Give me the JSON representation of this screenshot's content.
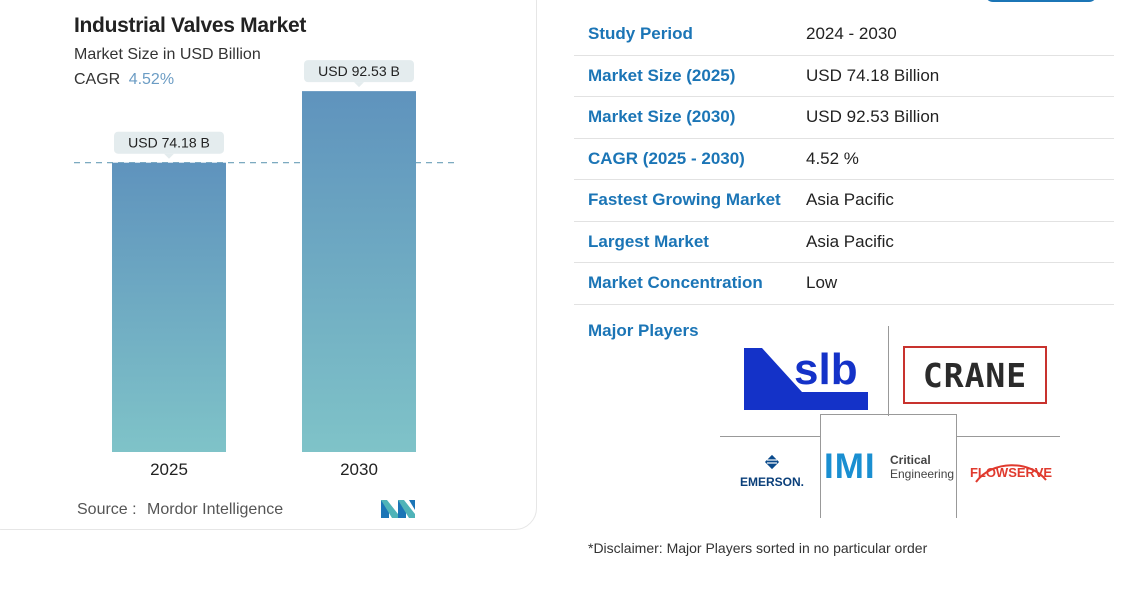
{
  "chart_data": {
    "type": "bar",
    "title": "Industrial Valves Market",
    "subtitle": "Market Size in USD Billion",
    "cagr_label": "CAGR",
    "cagr_value": "4.52%",
    "categories": [
      "2025",
      "2030"
    ],
    "values": [
      74.18,
      92.53
    ],
    "data_labels": [
      "USD 74.18 B",
      "USD 92.53 B"
    ],
    "xlabel": "",
    "ylabel": "",
    "ylim": [
      0,
      100
    ],
    "grid": false,
    "reference_line": 74.18,
    "bar_gradient": {
      "top": "#5f93bd",
      "bottom": "#7fc3c8"
    }
  },
  "source": {
    "label": "Source :",
    "name": "Mordor Intelligence"
  },
  "brand_color": "#1b75b6",
  "table": [
    {
      "key": "Study Period",
      "value": "2024 - 2030"
    },
    {
      "key": "Market Size (2025)",
      "value": "USD 74.18 Billion"
    },
    {
      "key": "Market Size (2030)",
      "value": "USD 92.53 Billion"
    },
    {
      "key": "CAGR (2025 - 2030)",
      "value": "4.52 %"
    },
    {
      "key": "Fastest Growing Market",
      "value": "Asia Pacific"
    },
    {
      "key": "Largest Market",
      "value": "Asia Pacific"
    },
    {
      "key": "Market Concentration",
      "value": "Low"
    }
  ],
  "players": {
    "label": "Major Players",
    "logos": {
      "slb": "slb",
      "crane": "CRANE",
      "emerson": "EMERSON.",
      "imi_main": "IMI",
      "imi_line1": "Critical",
      "imi_line2": "Engineering",
      "flowserve": "FLOWSERVE"
    }
  },
  "disclaimer": "*Disclaimer: Major Players sorted in no particular order"
}
